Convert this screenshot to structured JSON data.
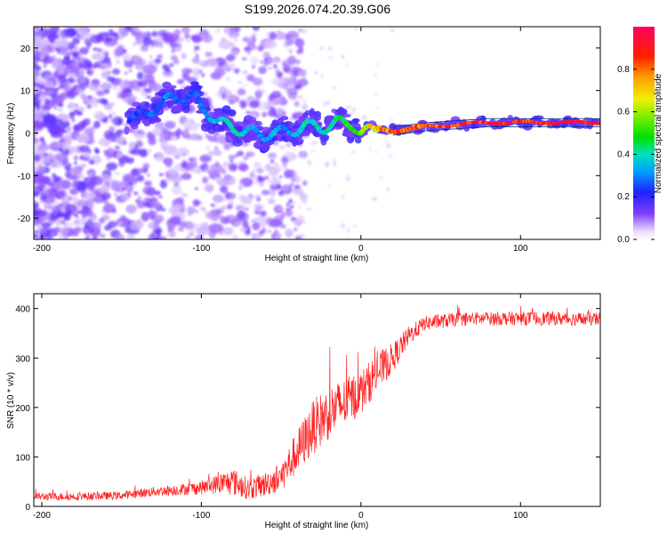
{
  "chart_data": [
    {
      "type": "heatmap",
      "title": "S199.2026.074.20.39.G06",
      "xlabel": "Height of straight line (km)",
      "ylabel": "Frequency (Hz)",
      "xlim": [
        -205,
        150
      ],
      "ylim": [
        -25,
        25
      ],
      "xticks": [
        -200,
        -100,
        0,
        100
      ],
      "yticks": [
        -20,
        -10,
        0,
        10,
        20
      ],
      "colorbar": {
        "label": "Normalized spectral amplitude",
        "range": [
          0.0,
          1.0
        ],
        "ticks": [
          0.0,
          0.2,
          0.4,
          0.6,
          0.8
        ]
      },
      "ridge": {
        "description_points_height_km": [
          -140,
          -120,
          -105,
          -100,
          -90,
          -80,
          -70,
          -62,
          -55,
          -45,
          -35,
          -25,
          -15,
          -5,
          0,
          10,
          20,
          40,
          60,
          80,
          100,
          120,
          150
        ],
        "frequency_hz": [
          3.5,
          8,
          9,
          6,
          3,
          1,
          0.5,
          -1,
          0.5,
          0,
          2,
          1,
          2.5,
          2,
          0,
          1,
          0.5,
          1.5,
          2,
          2.5,
          2.5,
          2.5,
          2.5
        ],
        "amplitude": [
          0.25,
          0.3,
          0.25,
          0.3,
          0.35,
          0.4,
          0.35,
          0.3,
          0.35,
          0.3,
          0.4,
          0.4,
          0.45,
          0.5,
          0.55,
          0.75,
          0.8,
          0.85,
          0.85,
          0.9,
          0.9,
          0.95,
          0.95
        ]
      }
    },
    {
      "type": "line",
      "title": "",
      "xlabel": "Height of straight line (km)",
      "ylabel": "SNR (10 * v/v)",
      "xlim": [
        -205,
        150
      ],
      "ylim": [
        0,
        430
      ],
      "xticks": [
        -200,
        -100,
        0,
        100
      ],
      "yticks": [
        0,
        100,
        200,
        300,
        400
      ],
      "series": [
        {
          "name": "SNR",
          "color": "#ff2020",
          "x": [
            -205,
            -180,
            -150,
            -130,
            -110,
            -100,
            -90,
            -80,
            -70,
            -60,
            -50,
            -40,
            -30,
            -20,
            -10,
            0,
            10,
            20,
            30,
            40,
            60,
            80,
            100,
            120,
            150
          ],
          "y": [
            20,
            20,
            22,
            30,
            35,
            38,
            45,
            50,
            35,
            45,
            60,
            110,
            160,
            190,
            210,
            230,
            270,
            300,
            345,
            370,
            378,
            380,
            380,
            380,
            378
          ],
          "noise": [
            8,
            8,
            8,
            10,
            12,
            14,
            20,
            28,
            22,
            25,
            30,
            45,
            55,
            55,
            50,
            45,
            40,
            30,
            20,
            15,
            14,
            14,
            14,
            14,
            14
          ]
        }
      ]
    }
  ],
  "colors": {
    "line": "#ff2020",
    "ridge_low": "#4020e0",
    "ridge_high": "#ff0000"
  }
}
